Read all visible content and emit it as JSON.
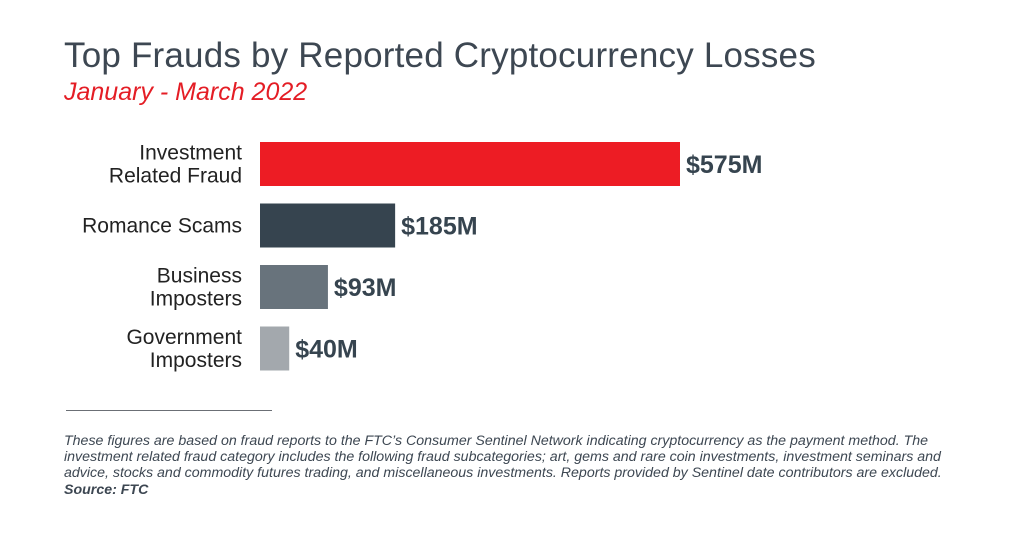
{
  "chart_data": {
    "type": "bar",
    "orientation": "horizontal",
    "title": "Top Frauds by Reported Cryptocurrency Losses",
    "subtitle": "January - March 2022",
    "categories": [
      [
        "Investment",
        "Related Fraud"
      ],
      [
        "Romance Scams"
      ],
      [
        "Business",
        "Imposters"
      ],
      [
        "Government",
        "Imposters"
      ]
    ],
    "values": [
      575,
      185,
      93,
      40
    ],
    "data_labels": [
      "$575M",
      "$185M",
      "$93M",
      "$40M"
    ],
    "unit": "$M",
    "colors": [
      "#ed1c24",
      "#36444f",
      "#68737c",
      "#a3a8ad"
    ],
    "label_color": "#36444f",
    "xlim": [
      0,
      575
    ],
    "grid": false,
    "legend": "none"
  },
  "footnote": {
    "text": "These figures are based on fraud reports to the FTC’s Consumer Sentinel Network indicating cryptocurrency as the payment method. The investment related fraud category includes the following fraud subcategories; art, gems and rare coin investments, investment seminars and advice, stocks and commodity futures trading, and miscellaneous investments. Reports provided by Sentinel date contributors are excluded.",
    "source": "Source: FTC"
  }
}
